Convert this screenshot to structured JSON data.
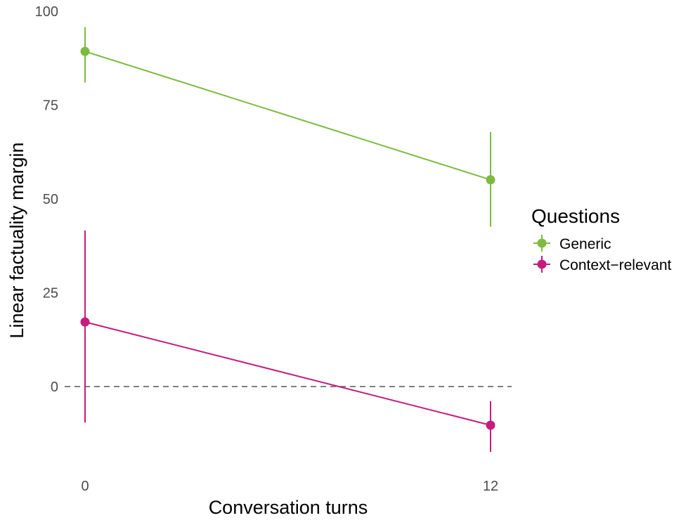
{
  "chart_data": {
    "type": "line",
    "xlabel": "Conversation turns",
    "ylabel": "Linear factuality margin",
    "x": [
      0,
      12
    ],
    "x_tick_labels": [
      "0",
      "12"
    ],
    "y_ticks": [
      "0",
      "25",
      "50",
      "75",
      "100"
    ],
    "ylim": [
      -22,
      100
    ],
    "reference_line": {
      "y": 0,
      "style": "dashed",
      "color": "#808080"
    },
    "grid": false,
    "legend": {
      "title": "Questions",
      "position": "right"
    },
    "series": [
      {
        "name": "Generic",
        "color": "#7cbb3f",
        "values": [
          89.3,
          55.1
        ],
        "error_low": [
          81.0,
          42.6
        ],
        "error_high": [
          95.8,
          67.8
        ]
      },
      {
        "name": "Context−relevant",
        "color": "#c51b7d",
        "values": [
          17.2,
          -10.3
        ],
        "error_low": [
          -9.6,
          -17.4
        ],
        "error_high": [
          41.6,
          -3.9
        ]
      }
    ]
  }
}
